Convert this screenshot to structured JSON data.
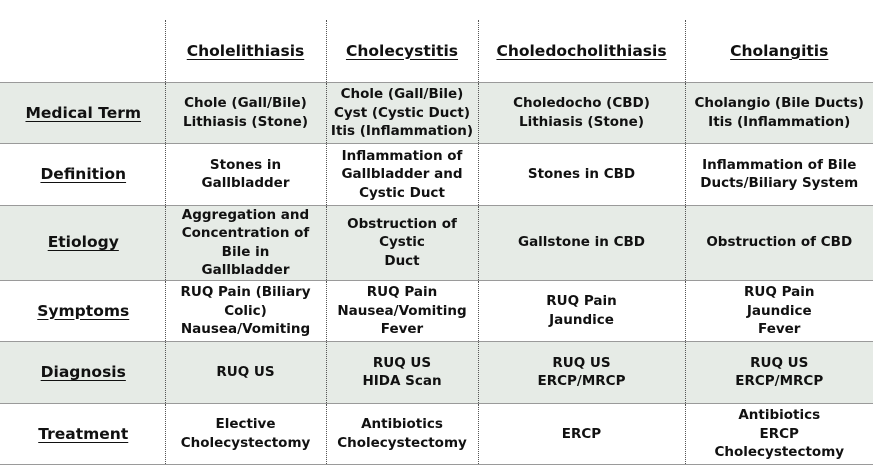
{
  "columns": [
    "",
    "Cholelithiasis",
    "Cholecystitis",
    "Choledocholithiasis",
    "Cholangitis"
  ],
  "rows": [
    {
      "label": "Medical Term",
      "cells": [
        [
          "Chole (Gall/Bile)",
          "Lithiasis (Stone)"
        ],
        [
          "Chole (Gall/Bile)",
          "Cyst (Cystic Duct)",
          "Itis (Inflammation)"
        ],
        [
          "Choledocho (CBD)",
          "Lithiasis (Stone)"
        ],
        [
          "Cholangio (Bile Ducts)",
          "Itis (Inflammation)"
        ]
      ]
    },
    {
      "label": "Definition",
      "cells": [
        [
          "Stones in Gallbladder"
        ],
        [
          "Inflammation of",
          "Gallbladder and",
          "Cystic Duct"
        ],
        [
          "Stones in CBD"
        ],
        [
          "Inflammation of Bile",
          "Ducts/Biliary System"
        ]
      ]
    },
    {
      "label": "Etiology",
      "cells": [
        [
          "Aggregation and",
          "Concentration of Bile in",
          "Gallbladder"
        ],
        [
          "Obstruction of Cystic",
          "Duct"
        ],
        [
          "Gallstone in CBD"
        ],
        [
          "Obstruction of CBD"
        ]
      ]
    },
    {
      "label": "Symptoms",
      "cells": [
        [
          "RUQ Pain (Biliary Colic)",
          "Nausea/Vomiting"
        ],
        [
          "RUQ Pain",
          "Nausea/Vomiting",
          "Fever"
        ],
        [
          "RUQ Pain",
          "Jaundice"
        ],
        [
          "RUQ Pain",
          "Jaundice",
          "Fever"
        ]
      ]
    },
    {
      "label": "Diagnosis",
      "cells": [
        [
          "RUQ US"
        ],
        [
          "RUQ US",
          "HIDA Scan"
        ],
        [
          "RUQ US",
          "ERCP/MRCP"
        ],
        [
          "RUQ US",
          "ERCP/MRCP"
        ]
      ]
    },
    {
      "label": "Treatment",
      "cells": [
        [
          "Elective",
          "Cholecystectomy"
        ],
        [
          "Antibiotics",
          "Cholecystectomy"
        ],
        [
          "ERCP"
        ],
        [
          "Antibiotics",
          "ERCP",
          "Cholecystectomy"
        ]
      ]
    }
  ]
}
